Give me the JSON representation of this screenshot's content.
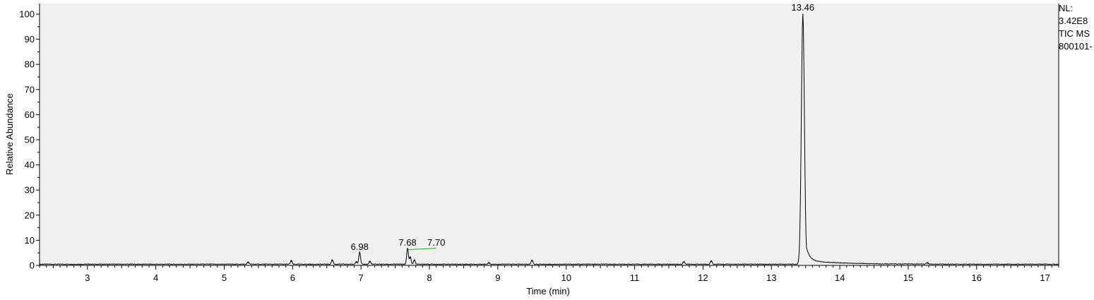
{
  "info": {
    "nl_label": "NL:",
    "nl_value": "3.42E8",
    "scan_filter": "TIC  MS",
    "file_name": "800101-"
  },
  "colors": {
    "plot_background": "#f0f0f0",
    "trace": "#000000",
    "baseline_marker": "#2e9b2e"
  },
  "chart_data": {
    "type": "line",
    "title": "",
    "xlabel": "Time (min)",
    "ylabel": "Relative Abundance",
    "xlim": [
      2.3,
      17.2
    ],
    "ylim": [
      0,
      100
    ],
    "xticks": [
      3,
      4,
      5,
      6,
      7,
      8,
      9,
      10,
      11,
      12,
      13,
      14,
      15,
      16,
      17
    ],
    "yticks": [
      0,
      10,
      20,
      30,
      40,
      50,
      60,
      70,
      80,
      90,
      100
    ],
    "grid": false,
    "peaks": [
      {
        "x": 5.35,
        "y": 1.0
      },
      {
        "x": 5.98,
        "y": 1.5
      },
      {
        "x": 6.58,
        "y": 1.8
      },
      {
        "x": 6.93,
        "y": 1.2
      },
      {
        "x": 6.98,
        "y": 4.8
      },
      {
        "x": 7.13,
        "y": 1.3
      },
      {
        "x": 7.68,
        "y": 6.5
      },
      {
        "x": 7.72,
        "y": 3.0
      },
      {
        "x": 7.78,
        "y": 1.8
      },
      {
        "x": 8.87,
        "y": 0.8
      },
      {
        "x": 9.5,
        "y": 1.8
      },
      {
        "x": 11.72,
        "y": 1.2
      },
      {
        "x": 12.12,
        "y": 1.5
      },
      {
        "x": 13.46,
        "y": 100
      },
      {
        "x": 15.28,
        "y": 0.6
      }
    ],
    "annotations": [
      {
        "text": "13.46",
        "x": 13.46,
        "y": 100
      },
      {
        "text": "6.98",
        "x": 6.98,
        "y": 4.8
      },
      {
        "text": "7.68",
        "x": 7.68,
        "y": 6.5
      },
      {
        "text": "7.70",
        "x": 8.1,
        "y": 6.5
      }
    ],
    "baseline_marker": {
      "x": [
        7.68,
        8.1
      ],
      "y": [
        6.3,
        6.8
      ]
    }
  }
}
